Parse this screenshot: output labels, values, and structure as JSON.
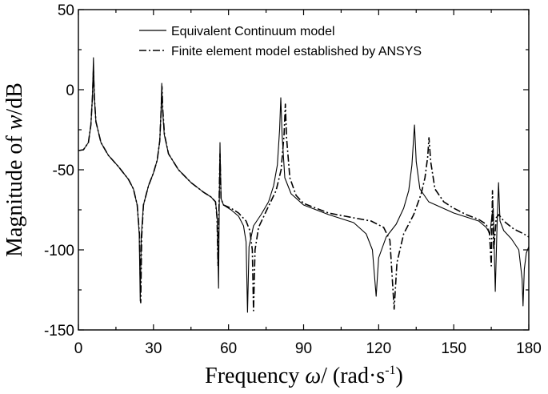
{
  "chart_data": {
    "type": "line",
    "title": "",
    "xlabel": {
      "prefix": "Frequency ",
      "symbol": "ω",
      "suffix": "/ (rad·s",
      "sup": "-1",
      "close": ")"
    },
    "ylabel": {
      "prefix": "Magnitude of  ",
      "symbol": "w",
      "suffix": "/dB"
    },
    "xlim": [
      0,
      180
    ],
    "ylim": [
      -150,
      50
    ],
    "xticks": [
      0,
      30,
      60,
      90,
      120,
      150,
      180
    ],
    "yticks": [
      50,
      0,
      -50,
      -100,
      -150
    ],
    "xtick_labels": [
      "0",
      "30",
      "60",
      "90",
      "120",
      "150",
      "180"
    ],
    "ytick_labels": [
      "50",
      "0",
      "-50",
      "-100",
      "-150"
    ],
    "grid": false,
    "legend_position": "top",
    "series": [
      {
        "name": "Equivalent Continuum model",
        "style": "solid",
        "color": "#000000",
        "points": [
          [
            0,
            -38
          ],
          [
            2,
            -37.5
          ],
          [
            4,
            -33
          ],
          [
            5,
            -22
          ],
          [
            5.6,
            -5
          ],
          [
            6.0,
            20
          ],
          [
            6.4,
            -5
          ],
          [
            7,
            -20
          ],
          [
            9,
            -33
          ],
          [
            12,
            -41
          ],
          [
            16,
            -48
          ],
          [
            20,
            -56
          ],
          [
            22,
            -62
          ],
          [
            23.5,
            -72
          ],
          [
            24.3,
            -90
          ],
          [
            24.7,
            -132
          ],
          [
            25.1,
            -92
          ],
          [
            26,
            -72
          ],
          [
            28,
            -60
          ],
          [
            30,
            -52
          ],
          [
            31.5,
            -44
          ],
          [
            32.5,
            -32
          ],
          [
            33.0,
            -15
          ],
          [
            33.3,
            4
          ],
          [
            33.6,
            -12
          ],
          [
            34.3,
            -28
          ],
          [
            36,
            -40
          ],
          [
            40,
            -50
          ],
          [
            45,
            -58
          ],
          [
            50,
            -64
          ],
          [
            53,
            -67
          ],
          [
            54.8,
            -70
          ],
          [
            55.5,
            -80
          ],
          [
            56.0,
            -124
          ],
          [
            56.3,
            -70
          ],
          [
            56.6,
            -33
          ],
          [
            57.0,
            -68
          ],
          [
            58,
            -72
          ],
          [
            61,
            -75
          ],
          [
            64,
            -79
          ],
          [
            66,
            -85
          ],
          [
            67.0,
            -95
          ],
          [
            67.6,
            -139
          ],
          [
            68.2,
            -98
          ],
          [
            70,
            -85
          ],
          [
            73,
            -78
          ],
          [
            76,
            -70
          ],
          [
            78,
            -60
          ],
          [
            79.5,
            -47
          ],
          [
            80.4,
            -25
          ],
          [
            80.9,
            -5
          ],
          [
            81.4,
            -28
          ],
          [
            82.5,
            -55
          ],
          [
            85,
            -65
          ],
          [
            90,
            -72
          ],
          [
            100,
            -78
          ],
          [
            110,
            -83
          ],
          [
            115,
            -90
          ],
          [
            117.5,
            -100
          ],
          [
            119,
            -129
          ],
          [
            120,
            -105
          ],
          [
            123,
            -92
          ],
          [
            127,
            -84
          ],
          [
            130,
            -74
          ],
          [
            132,
            -63
          ],
          [
            133.3,
            -47
          ],
          [
            134.3,
            -22
          ],
          [
            135.0,
            -45
          ],
          [
            136.5,
            -62
          ],
          [
            140,
            -70
          ],
          [
            150,
            -77
          ],
          [
            160,
            -82
          ],
          [
            163,
            -86
          ],
          [
            164.5,
            -90
          ],
          [
            165.3,
            -78
          ],
          [
            165.8,
            -74
          ],
          [
            166.6,
            -126
          ],
          [
            167.3,
            -85
          ],
          [
            167.9,
            -58
          ],
          [
            168.5,
            -82
          ],
          [
            170,
            -88
          ],
          [
            173,
            -93
          ],
          [
            176,
            -100
          ],
          [
            177.3,
            -118
          ],
          [
            177.7,
            -135
          ],
          [
            178.2,
            -112
          ],
          [
            179,
            -102
          ],
          [
            180,
            -98
          ]
        ]
      },
      {
        "name": "Finite element model established by ANSYS",
        "style": "dashdot",
        "color": "#000000",
        "points": [
          [
            0,
            -38
          ],
          [
            2,
            -37.5
          ],
          [
            4,
            -33
          ],
          [
            5,
            -22
          ],
          [
            5.6,
            -5
          ],
          [
            6.0,
            12
          ],
          [
            6.4,
            -5
          ],
          [
            7,
            -20
          ],
          [
            9,
            -33
          ],
          [
            12,
            -41
          ],
          [
            16,
            -48
          ],
          [
            20,
            -56
          ],
          [
            22,
            -62
          ],
          [
            23.5,
            -72
          ],
          [
            24.4,
            -90
          ],
          [
            24.9,
            -133
          ],
          [
            25.3,
            -92
          ],
          [
            26,
            -72
          ],
          [
            28,
            -60
          ],
          [
            30,
            -52
          ],
          [
            31.5,
            -44
          ],
          [
            32.5,
            -32
          ],
          [
            33.0,
            -15
          ],
          [
            33.4,
            2
          ],
          [
            33.7,
            -12
          ],
          [
            34.4,
            -28
          ],
          [
            36,
            -40
          ],
          [
            40,
            -50
          ],
          [
            45,
            -58
          ],
          [
            50,
            -64
          ],
          [
            53,
            -67
          ],
          [
            54.8,
            -70
          ],
          [
            55.4,
            -80
          ],
          [
            55.8,
            -110
          ],
          [
            56.2,
            -72
          ],
          [
            56.6,
            -40
          ],
          [
            57.0,
            -68
          ],
          [
            58,
            -72
          ],
          [
            61,
            -74
          ],
          [
            64,
            -77
          ],
          [
            67,
            -82
          ],
          [
            68.5,
            -88
          ],
          [
            69.5,
            -100
          ],
          [
            70.0,
            -138
          ],
          [
            70.6,
            -100
          ],
          [
            72,
            -86
          ],
          [
            75,
            -76
          ],
          [
            79,
            -63
          ],
          [
            81,
            -50
          ],
          [
            82.2,
            -28
          ],
          [
            82.7,
            -9
          ],
          [
            83.2,
            -30
          ],
          [
            84.5,
            -55
          ],
          [
            87,
            -66
          ],
          [
            90,
            -71
          ],
          [
            100,
            -77
          ],
          [
            110,
            -80
          ],
          [
            117,
            -82
          ],
          [
            122,
            -86
          ],
          [
            124.5,
            -94
          ],
          [
            126.2,
            -137
          ],
          [
            127.3,
            -108
          ],
          [
            130,
            -90
          ],
          [
            134,
            -78
          ],
          [
            137,
            -65
          ],
          [
            138.5,
            -55
          ],
          [
            139.6,
            -42
          ],
          [
            140.1,
            -30
          ],
          [
            140.8,
            -45
          ],
          [
            142.5,
            -62
          ],
          [
            146,
            -70
          ],
          [
            150,
            -74
          ],
          [
            155,
            -78
          ],
          [
            160,
            -81
          ],
          [
            163,
            -84
          ],
          [
            164.3,
            -90
          ],
          [
            165.0,
            -110
          ],
          [
            165.5,
            -63
          ],
          [
            166.0,
            -100
          ],
          [
            167,
            -80
          ],
          [
            168,
            -78
          ],
          [
            170,
            -82
          ],
          [
            174,
            -87
          ],
          [
            178,
            -90
          ],
          [
            180,
            -92
          ]
        ]
      }
    ]
  }
}
